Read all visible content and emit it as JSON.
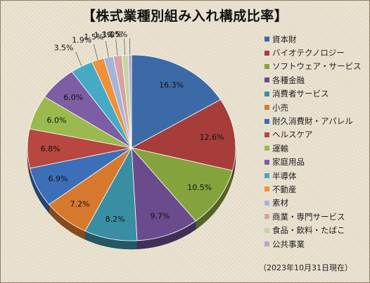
{
  "chart_data": {
    "type": "pie",
    "title": "【株式業種別組み入れ構成比率】",
    "date_note": "（2023年10月31日現在）",
    "legend_position": "right",
    "slices": [
      {
        "label": "資本財",
        "value": 16.3,
        "value_label": "16.3%",
        "color": "#3c6aa6"
      },
      {
        "label": "バイオテクノロジー",
        "value": 12.6,
        "value_label": "12.6%",
        "color": "#a63d3a"
      },
      {
        "label": "ソフトウェア・サービス",
        "value": 10.5,
        "value_label": "10.5%",
        "color": "#85a33d"
      },
      {
        "label": "各種金融",
        "value": 9.7,
        "value_label": "9.7%",
        "color": "#6a4c8c"
      },
      {
        "label": "消費者サービス",
        "value": 8.2,
        "value_label": "8.2%",
        "color": "#3a8ea3"
      },
      {
        "label": "小売",
        "value": 7.2,
        "value_label": "7.2%",
        "color": "#d6792e"
      },
      {
        "label": "耐久消費財・アパレル",
        "value": 6.9,
        "value_label": "6.9%",
        "color": "#3d6fb8"
      },
      {
        "label": "ヘルスケア",
        "value": 6.8,
        "value_label": "6.8%",
        "color": "#b84741"
      },
      {
        "label": "運輸",
        "value": 6.0,
        "value_label": "6.0%",
        "color": "#9aba4f"
      },
      {
        "label": "家庭用品",
        "value": 6.0,
        "value_label": "6.0%",
        "color": "#7d5da3"
      },
      {
        "label": "半導体",
        "value": 3.5,
        "value_label": "3.5%",
        "color": "#46aac4"
      },
      {
        "label": "不動産",
        "value": 1.9,
        "value_label": "1.9%",
        "color": "#f0903a"
      },
      {
        "label": "素材",
        "value": 1.5,
        "value_label": "1.5%",
        "color": "#a3b6d8"
      },
      {
        "label": "商業・専門サービス",
        "value": 1.3,
        "value_label": "1.3%",
        "color": "#d8a3a1"
      },
      {
        "label": "食品・飲料・たばこ",
        "value": 1.0,
        "value_label": "1.0%",
        "color": "#c4d6a3"
      },
      {
        "label": "公共事業",
        "value": 0.5,
        "value_label": "0.5%",
        "color": "#b6a8cc"
      }
    ]
  }
}
